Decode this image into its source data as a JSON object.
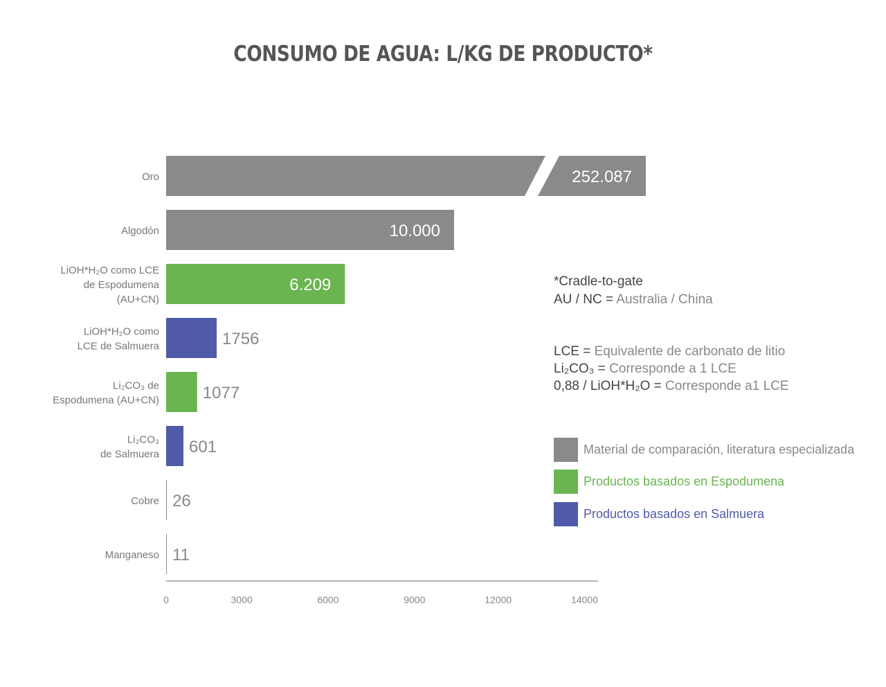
{
  "chart_data": {
    "type": "bar",
    "orientation": "horizontal",
    "title": "CONSUMO DE AGUA: L/KG DE PRODUCTO*",
    "categories": [
      [
        "Oro"
      ],
      [
        "Algodón"
      ],
      [
        "LiOH*H₂O como LCE",
        "de Espodumena",
        "(AU+CN)"
      ],
      [
        "LiOH*H₂O como",
        "LCE de Salmuera"
      ],
      [
        "Li₂CO₃ de",
        "Espodumena (AU+CN)"
      ],
      [
        "Li₂CO₃",
        "de Salmuera"
      ],
      [
        "Cobre"
      ],
      [
        "Manganeso"
      ]
    ],
    "values": [
      252087,
      10000,
      6209,
      1756,
      1077,
      601,
      26,
      11
    ],
    "value_labels": [
      "252.087",
      "10.000",
      "6.209",
      "1756",
      "1077",
      "601",
      "26",
      "11"
    ],
    "groups": [
      "comparison",
      "comparison",
      "espodumena",
      "salmuera",
      "espodumena",
      "salmuera",
      "comparison",
      "comparison"
    ],
    "broken_axis_bar": "Oro",
    "x_ticks": [
      "0",
      "3000",
      "6000",
      "9000",
      "12000",
      "14000"
    ],
    "xlim": [
      0,
      15000
    ],
    "grid": false,
    "legend_placement": "right",
    "colors": {
      "comparison": "#8a8a8a",
      "espodumena": "#6ab550",
      "salmuera": "#4f5ba8"
    }
  },
  "notes": [
    {
      "key": "*Cradle-to-gate",
      "value": ""
    },
    {
      "key": "AU / NC =",
      "value": "Australia / China"
    },
    {
      "key": "LCE =",
      "value": "Equivalente de carbonato de litio"
    },
    {
      "key": "Li₂CO₃ =",
      "value": "Corresponde a 1 LCE"
    },
    {
      "key": "0,88 / LiOH*H₂O =",
      "value": "Corresponde a1 LCE"
    }
  ],
  "legend": [
    {
      "label": "Material de comparación, literatura especializada",
      "group": "comparison",
      "text_color": "#888888"
    },
    {
      "label": "Productos basados en Espodumena",
      "group": "espodumena",
      "text_color": "#6ab550"
    },
    {
      "label": "Productos basados en Salmuera",
      "group": "salmuera",
      "text_color": "#4f5ba8"
    }
  ]
}
